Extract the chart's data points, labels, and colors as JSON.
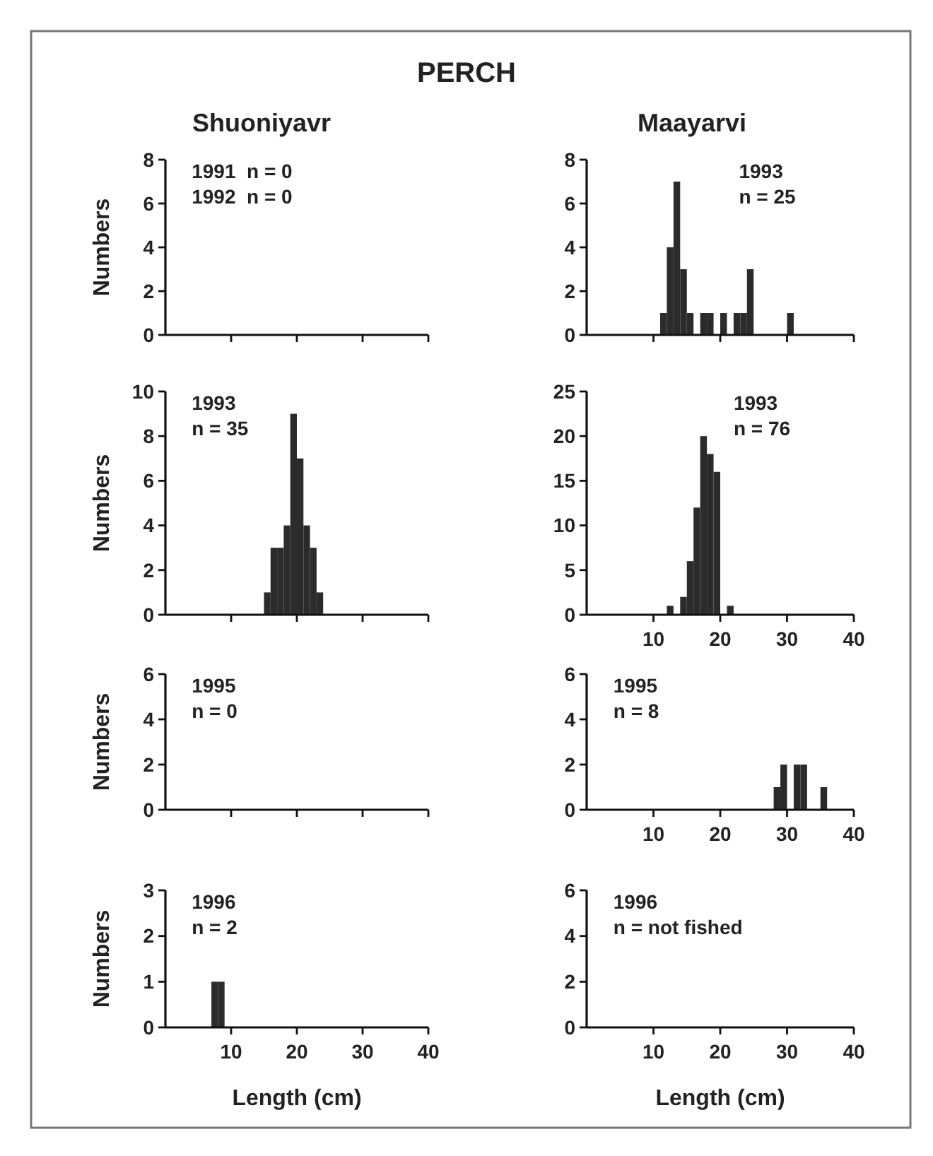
{
  "chart_data": [
    {
      "type": "histogram",
      "title": "PERCH",
      "subtitle": "Shuoniyavr",
      "ylabel": "Numbers",
      "xlim": [
        0,
        40
      ],
      "xticks": [
        10,
        20,
        30,
        40
      ],
      "ylim": [
        0,
        8
      ],
      "yticks": [
        0,
        2,
        4,
        6,
        8
      ],
      "tick_labels": "y",
      "annotations": [
        "1991  n = 0",
        "1992  n = 0"
      ]
    },
    {
      "type": "histogram",
      "subtitle": "Maayarvi",
      "xlim": [
        0,
        40
      ],
      "xticks": [
        10,
        20,
        30,
        40
      ],
      "ylim": [
        0,
        8
      ],
      "yticks": [
        0,
        2,
        4,
        6,
        8
      ],
      "tick_labels": "y",
      "color": "#2b2b2b",
      "annotations": [
        "1993",
        "n = 25"
      ],
      "bins": [
        11,
        12,
        13,
        14,
        15,
        16,
        17,
        18,
        19,
        20,
        21,
        22,
        23,
        24,
        25,
        26,
        27,
        28,
        29,
        30,
        31
      ],
      "values": [
        1,
        4,
        7,
        3,
        1,
        0,
        1,
        1,
        0,
        1,
        0,
        1,
        1,
        3,
        0,
        0,
        0,
        0,
        0,
        1
      ]
    },
    {
      "type": "histogram",
      "ylabel": "Numbers",
      "xlim": [
        0,
        40
      ],
      "xticks": [
        10,
        20,
        30,
        40
      ],
      "ylim": [
        0,
        10
      ],
      "yticks": [
        0,
        2,
        4,
        6,
        8,
        10
      ],
      "tick_labels": "y",
      "color": "#2b2b2b",
      "annotations": [
        "1993",
        "n = 35"
      ],
      "bins": [
        15,
        16,
        17,
        18,
        19,
        20,
        21,
        22,
        23,
        24
      ],
      "values": [
        1,
        3,
        3,
        4,
        9,
        7,
        4,
        3,
        1
      ]
    },
    {
      "type": "histogram",
      "xlim": [
        0,
        40
      ],
      "xticks": [
        10,
        20,
        30,
        40
      ],
      "ylim": [
        0,
        25
      ],
      "yticks": [
        0,
        5,
        10,
        15,
        20,
        25
      ],
      "color": "#2b2b2b",
      "annotations": [
        "1993",
        "n = 76"
      ],
      "bins": [
        12,
        13,
        14,
        15,
        16,
        17,
        18,
        19,
        20,
        21,
        22
      ],
      "values": [
        1,
        0,
        2,
        6,
        12,
        20,
        18,
        16,
        0,
        1
      ]
    },
    {
      "type": "histogram",
      "ylabel": "Numbers",
      "xlim": [
        0,
        40
      ],
      "xticks": [
        10,
        20,
        30,
        40
      ],
      "ylim": [
        0,
        6
      ],
      "yticks": [
        0,
        2,
        4,
        6
      ],
      "tick_labels": "y",
      "annotations": [
        "1995",
        "n = 0"
      ]
    },
    {
      "type": "histogram",
      "xlim": [
        0,
        40
      ],
      "xticks": [
        10,
        20,
        30,
        40
      ],
      "ylim": [
        0,
        6
      ],
      "yticks": [
        0,
        2,
        4,
        6
      ],
      "color": "#2b2b2b",
      "annotations": [
        "1995",
        "n = 8"
      ],
      "bins": [
        28,
        29,
        30,
        31,
        32,
        33,
        34,
        35,
        36
      ],
      "values": [
        1,
        2,
        0,
        2,
        2,
        0,
        0,
        1
      ]
    },
    {
      "type": "histogram",
      "ylabel": "Numbers",
      "xlabel": "Length (cm)",
      "xlim": [
        0,
        40
      ],
      "xticks": [
        10,
        20,
        30,
        40
      ],
      "ylim": [
        0,
        3
      ],
      "yticks": [
        0,
        1,
        2,
        3
      ],
      "color": "#2b2b2b",
      "annotations": [
        "1996",
        "n = 2"
      ],
      "bins": [
        7,
        8,
        9
      ],
      "values": [
        1,
        1
      ]
    },
    {
      "type": "histogram",
      "xlabel": "Length (cm)",
      "xlim": [
        0,
        40
      ],
      "xticks": [
        10,
        20,
        30,
        40
      ],
      "ylim": [
        0,
        6
      ],
      "yticks": [
        0,
        2,
        4,
        6
      ],
      "annotations": [
        "1996",
        "n = not fished"
      ]
    }
  ]
}
